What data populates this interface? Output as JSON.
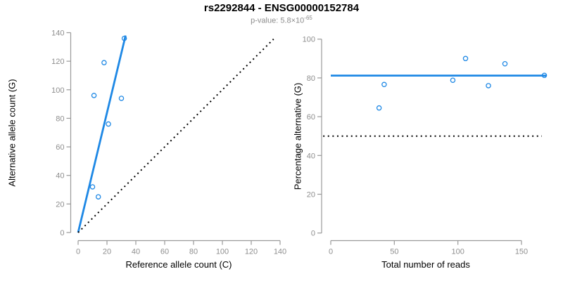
{
  "title": "rs2292844 - ENSG00000152784",
  "subtitle": {
    "prefix": "p-value: 5.8×10",
    "exponent": "-65"
  },
  "colors": {
    "accent_blue": "#1E88E5",
    "dotted_black": "#000000",
    "axis_gray": "#999999",
    "tick_label_gray": "#8e8e8e",
    "subtitle_gray": "#8c8c8c",
    "title_black": "#000000"
  },
  "chart_data": [
    {
      "name": "allele-counts-scatter",
      "type": "scatter",
      "xlabel": "Reference allele count (C)",
      "ylabel": "Alternative allele count (G)",
      "xlim": [
        0,
        140
      ],
      "ylim": [
        0,
        140
      ],
      "xticks": [
        0,
        20,
        40,
        60,
        80,
        100,
        120,
        140
      ],
      "yticks": [
        0,
        20,
        40,
        60,
        80,
        100,
        120,
        140
      ],
      "grid": false,
      "legend": null,
      "points": [
        [
          10,
          32
        ],
        [
          14,
          25
        ],
        [
          21,
          76
        ],
        [
          11,
          96
        ],
        [
          18,
          119
        ],
        [
          30,
          94
        ],
        [
          32,
          136
        ]
      ],
      "lines": [
        {
          "name": "fit-line",
          "style": "solid",
          "color": "#1E88E5",
          "from": [
            0,
            0
          ],
          "to": [
            32.9,
            138
          ]
        },
        {
          "name": "identity-line",
          "style": "dotted",
          "color": "#000000",
          "from": [
            0,
            0
          ],
          "to": [
            135.5,
            135.5
          ]
        }
      ]
    },
    {
      "name": "percentage-alternative-scatter",
      "type": "scatter",
      "xlabel": "Total number of reads",
      "ylabel": "Percentage alternative (G)",
      "xlim": [
        0,
        150
      ],
      "ylim": [
        0,
        100
      ],
      "xticks": [
        0,
        50,
        100,
        150
      ],
      "yticks": [
        0,
        20,
        40,
        60,
        80,
        100
      ],
      "grid": false,
      "legend": null,
      "points": [
        [
          38,
          64.5
        ],
        [
          42,
          76.6
        ],
        [
          96,
          78.8
        ],
        [
          106,
          90
        ],
        [
          124,
          76
        ],
        [
          137,
          87.3
        ],
        [
          168,
          81.3
        ]
      ],
      "lines": [
        {
          "name": "mean-percentage-line",
          "style": "solid",
          "color": "#1E88E5",
          "from": [
            0,
            81.2
          ],
          "to": [
            169.5,
            81.2
          ]
        },
        {
          "name": "fifty-percent-line",
          "style": "dotted",
          "color": "#000000",
          "from": [
            -6,
            50
          ],
          "to": [
            166,
            50
          ]
        }
      ]
    }
  ]
}
